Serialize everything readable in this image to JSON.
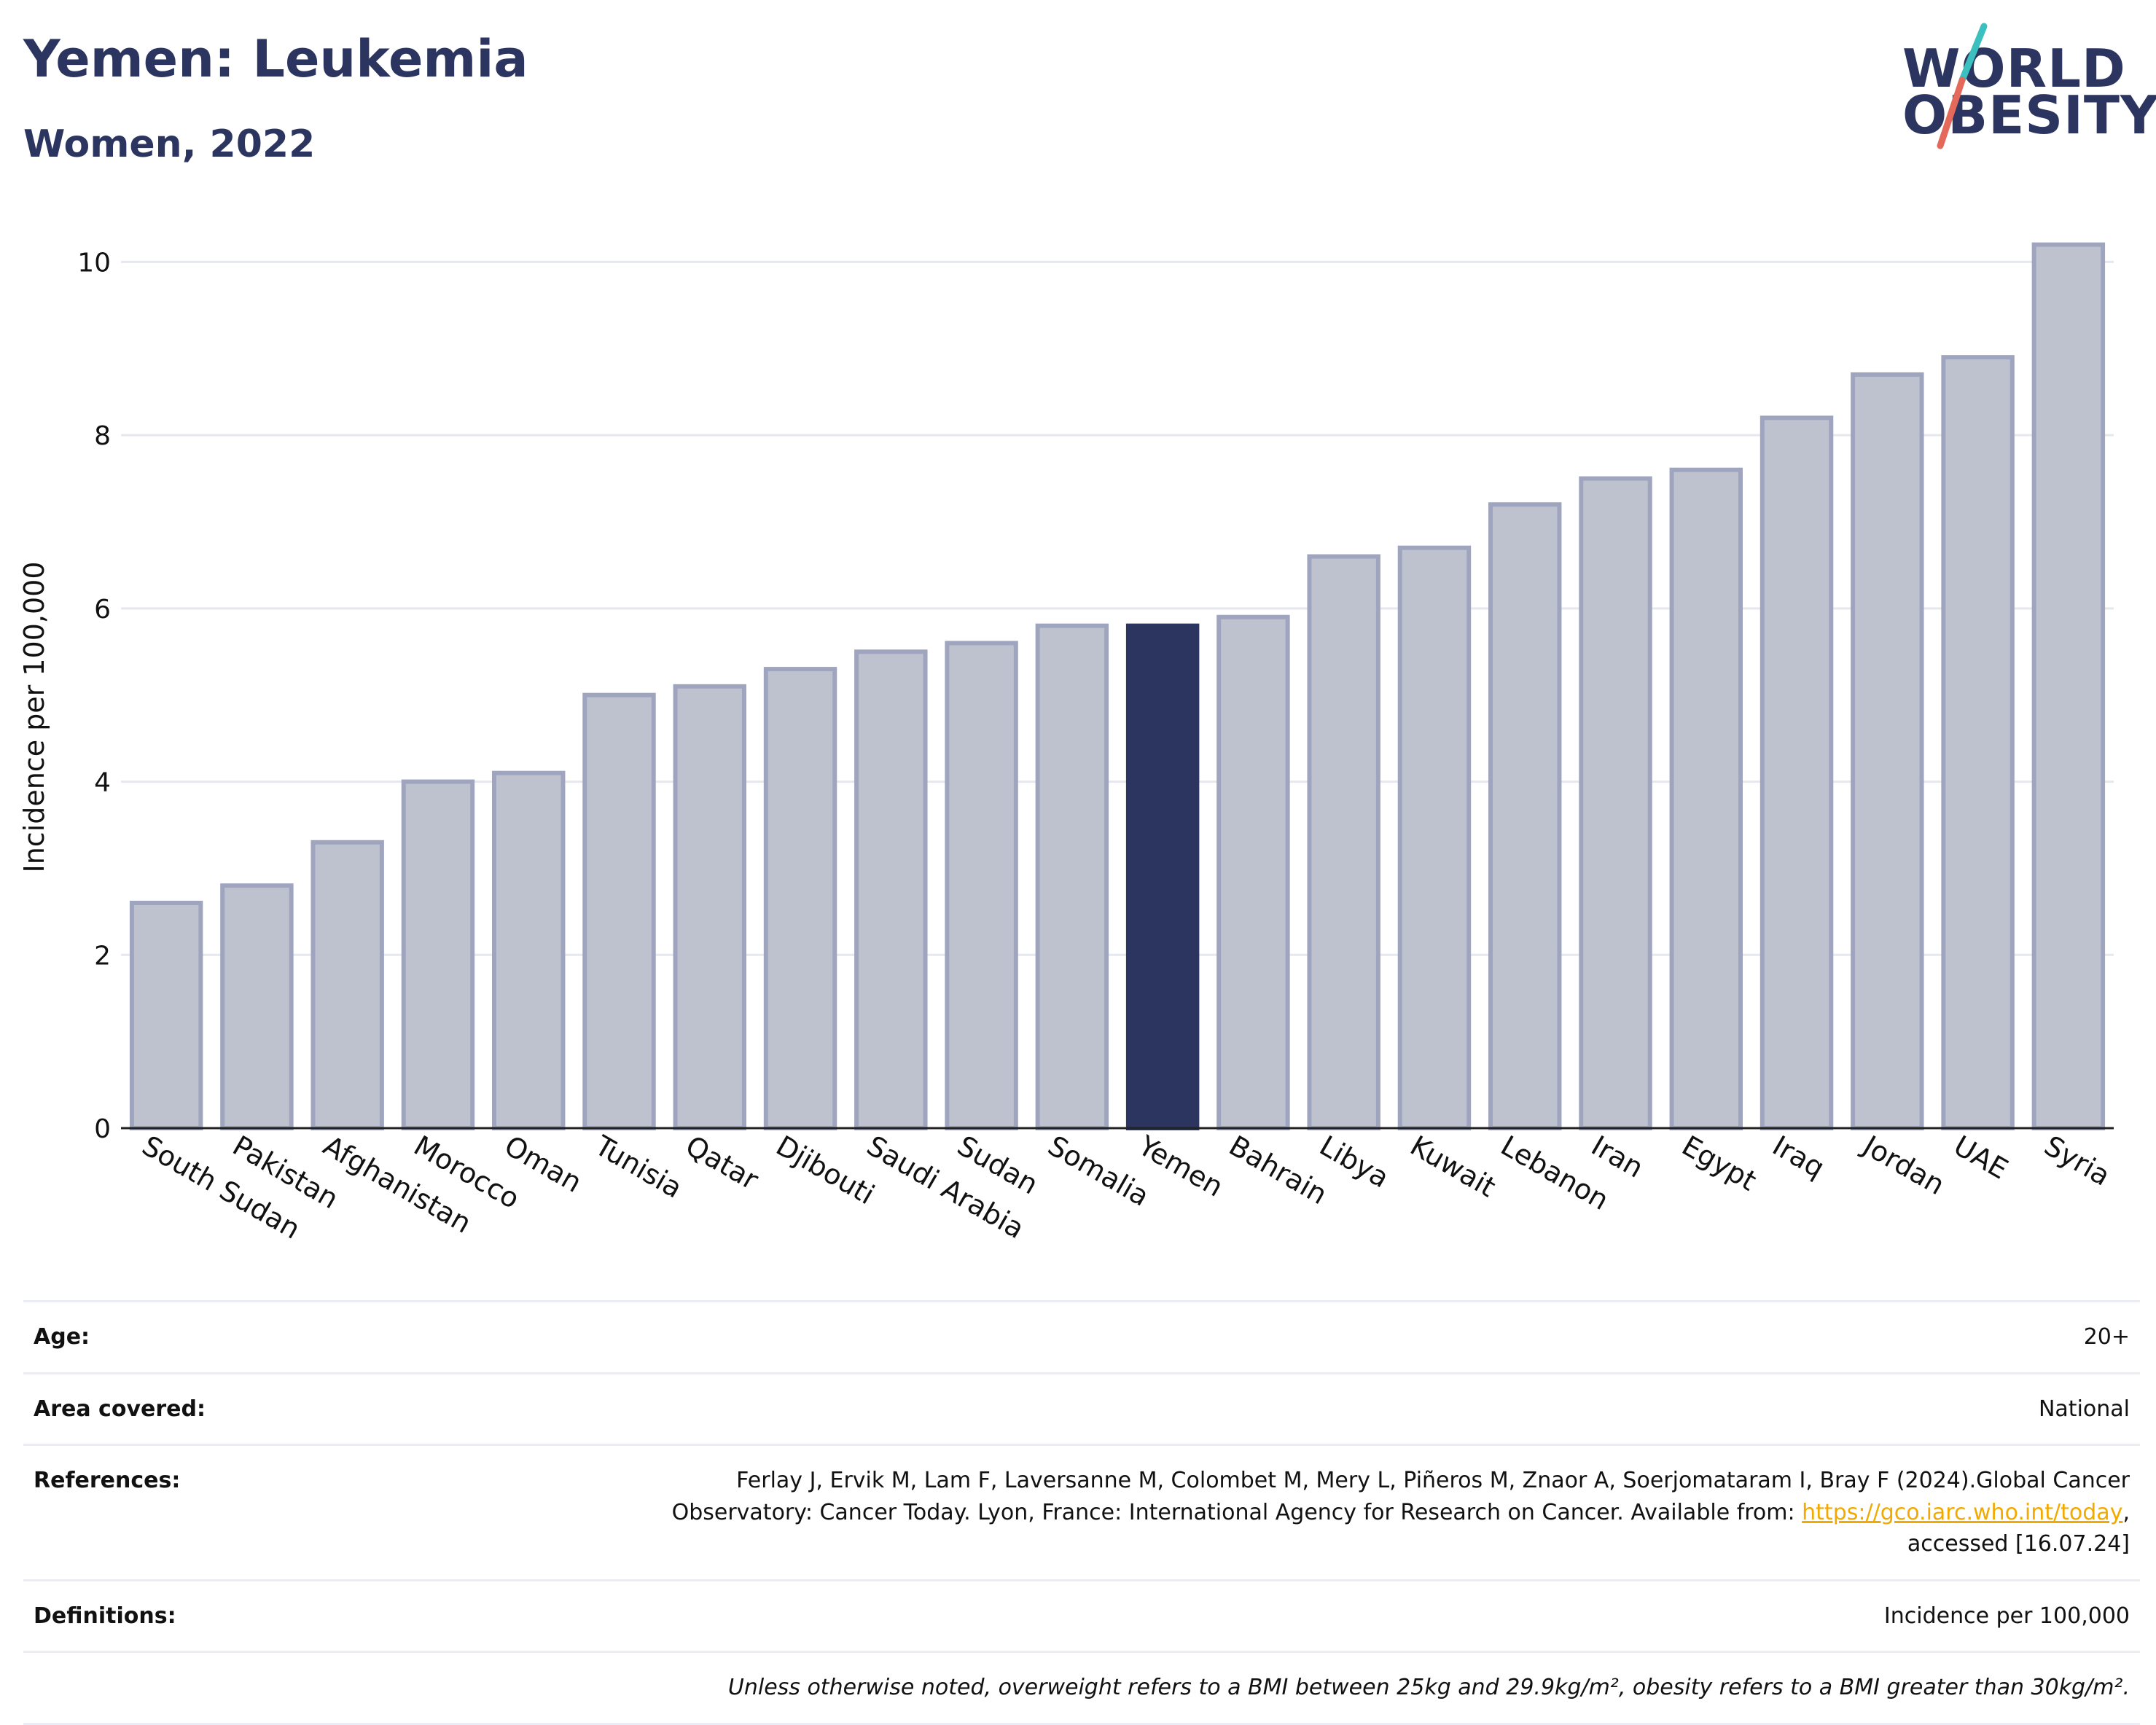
{
  "header": {
    "title": "Yemen: Leukemia",
    "subtitle": "Women, 2022"
  },
  "logo": {
    "line1": "WORLD",
    "line2": "OBESITY",
    "accent_colors": [
      "#3bbfbf",
      "#e4695a"
    ]
  },
  "colors": {
    "highlight_bar": "#2b3560",
    "bar_fill": "#bec2cf",
    "bar_stroke": "#a0a5bf",
    "title": "#2b3560",
    "link": "#f2a900"
  },
  "chart_data": {
    "type": "bar",
    "title": "Yemen: Leukemia",
    "subtitle": "Women, 2022",
    "xlabel": "",
    "ylabel": "Incidence per 100,000",
    "ylim": [
      0,
      10.5
    ],
    "yticks": [
      0,
      2,
      4,
      6,
      8,
      10
    ],
    "grid": true,
    "highlight": "Yemen",
    "categories": [
      "South Sudan",
      "Pakistan",
      "Afghanistan",
      "Morocco",
      "Oman",
      "Tunisia",
      "Qatar",
      "Djibouti",
      "Saudi Arabia",
      "Sudan",
      "Somalia",
      "Yemen",
      "Bahrain",
      "Libya",
      "Kuwait",
      "Lebanon",
      "Iran",
      "Egypt",
      "Iraq",
      "Jordan",
      "UAE",
      "Syria"
    ],
    "values": [
      2.6,
      2.8,
      3.3,
      4.0,
      4.1,
      5.0,
      5.1,
      5.3,
      5.5,
      5.6,
      5.8,
      5.8,
      5.9,
      6.6,
      6.7,
      7.2,
      7.5,
      7.6,
      8.2,
      8.7,
      8.9,
      10.2
    ]
  },
  "metadata": {
    "age": {
      "label": "Age:",
      "value": "20+"
    },
    "area": {
      "label": "Area covered:",
      "value": "National"
    },
    "references": {
      "label": "References:",
      "text_line1": "Ferlay J, Ervik M, Lam F, Laversanne M, Colombet M, Mery L, Piñeros M, Znaor A, Soerjomataram I, Bray F (2024).Global Cancer",
      "text_line2": "Observatory: Cancer Today. Lyon, France: International Agency for Research on Cancer. Available from: ",
      "link": "https://gco.iarc.who.int/today",
      "text_line3": "accessed [16.07.24]"
    },
    "definitions": {
      "label": "Definitions:",
      "value": "Incidence per 100,000"
    },
    "note": "Unless otherwise noted, overweight refers to a BMI between 25kg and 29.9kg/m², obesity refers to a BMI greater than 30kg/m²."
  }
}
